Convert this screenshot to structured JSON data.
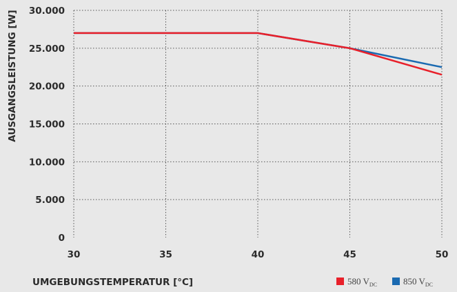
{
  "chart_data": {
    "type": "line",
    "xlabel": "UMGEBUNGSTEMPERATUR [°C]",
    "ylabel": "AUSGANGSLEISTUNG [W]",
    "xlim": [
      30,
      50
    ],
    "ylim": [
      0,
      30000
    ],
    "x_ticks": [
      "30",
      "35",
      "40",
      "45",
      "50"
    ],
    "y_ticks": [
      "0",
      "5.000",
      "10.000",
      "15.000",
      "20.000",
      "25.000",
      "30.000"
    ],
    "grid": true,
    "legend_position": "bottom-right",
    "series": [
      {
        "name_main": "580 V",
        "name_sub": "DC",
        "color": "#e8202a",
        "x": [
          30,
          40,
          45,
          50
        ],
        "y": [
          27000,
          27000,
          25000,
          21500
        ]
      },
      {
        "name_main": "850 V",
        "name_sub": "DC",
        "color": "#1a6ab1",
        "x": [
          30,
          40,
          45,
          50
        ],
        "y": [
          27000,
          27000,
          25000,
          22500
        ]
      }
    ]
  }
}
